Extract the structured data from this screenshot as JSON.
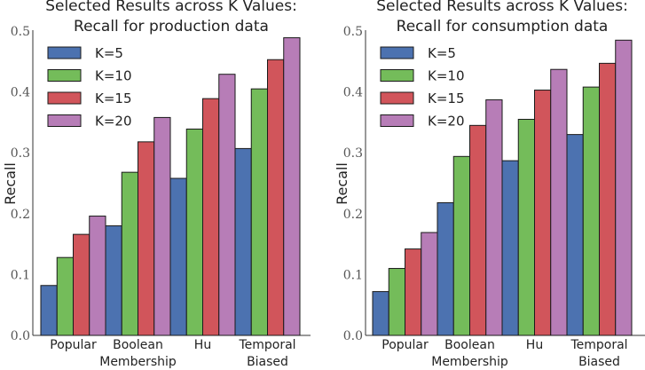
{
  "colors": {
    "K=5": "#4C72B0",
    "K=10": "#74BC5A",
    "K=15": "#D1555B",
    "K=20": "#B77DB7"
  },
  "chart_data": [
    {
      "type": "bar",
      "title": [
        "Selected Results across K Values:",
        "Recall for production data"
      ],
      "xlabel": "",
      "ylabel": "Recall",
      "ylim": [
        0,
        0.5
      ],
      "yticks": [
        "0.0",
        "0.1",
        "0.2",
        "0.3",
        "0.4",
        "0.5"
      ],
      "grid": false,
      "legend": "top-left",
      "categories": [
        [
          "Popular"
        ],
        [
          "Boolean",
          "Membership"
        ],
        [
          "Hu"
        ],
        [
          "Temporal",
          "Biased"
        ]
      ],
      "series": [
        {
          "name": "K=5",
          "values": [
            0.082,
            0.18,
            0.258,
            0.307
          ]
        },
        {
          "name": "K=10",
          "values": [
            0.128,
            0.268,
            0.339,
            0.405
          ]
        },
        {
          "name": "K=15",
          "values": [
            0.166,
            0.318,
            0.389,
            0.453
          ]
        },
        {
          "name": "K=20",
          "values": [
            0.196,
            0.358,
            0.429,
            0.489
          ]
        }
      ]
    },
    {
      "type": "bar",
      "title": [
        "Selected Results across K Values:",
        "Recall for consumption data"
      ],
      "xlabel": "",
      "ylabel": "Recall",
      "ylim": [
        0,
        0.5
      ],
      "yticks": [
        "0.0",
        "0.1",
        "0.2",
        "0.3",
        "0.4",
        "0.5"
      ],
      "grid": false,
      "legend": "top-left",
      "categories": [
        [
          "Popular"
        ],
        [
          "Boolean",
          "Membership"
        ],
        [
          "Hu"
        ],
        [
          "Temporal",
          "Biased"
        ]
      ],
      "series": [
        {
          "name": "K=5",
          "values": [
            0.072,
            0.218,
            0.287,
            0.33
          ]
        },
        {
          "name": "K=10",
          "values": [
            0.11,
            0.294,
            0.355,
            0.408
          ]
        },
        {
          "name": "K=15",
          "values": [
            0.142,
            0.345,
            0.403,
            0.447
          ]
        },
        {
          "name": "K=20",
          "values": [
            0.169,
            0.387,
            0.437,
            0.485
          ]
        }
      ]
    }
  ]
}
